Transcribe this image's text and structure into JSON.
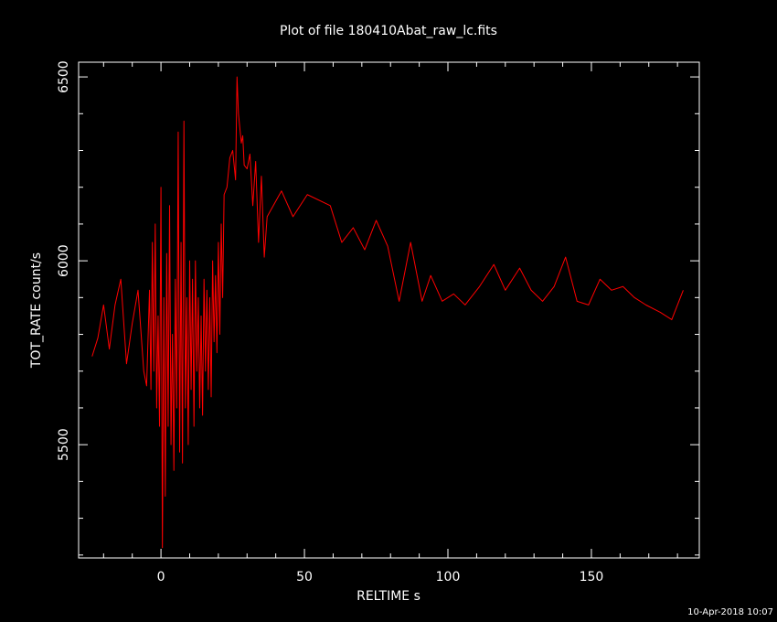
{
  "chart_data": {
    "type": "line",
    "title": "Plot of file 180410Abat_raw_lc.fits",
    "x_label": "RELTIME  s",
    "y_label": "TOT_RATE  count/s",
    "timestamp": "10-Apr-2018 10:07",
    "color": "#ff0000",
    "xlim": [
      -28.7,
      187.6
    ],
    "ylim": [
      5192,
      6540
    ],
    "xticks": [
      0,
      50,
      100,
      150
    ],
    "yticks": [
      5500,
      6000,
      6500
    ],
    "xminorticks": [
      -20,
      -10,
      10,
      20,
      30,
      40,
      60,
      70,
      80,
      90,
      110,
      120,
      130,
      140,
      160,
      170,
      180
    ],
    "yminorticks": [
      5200,
      5300,
      5400,
      5600,
      5700,
      5800,
      5900,
      6100,
      6200,
      6300,
      6400
    ],
    "x": [
      -24,
      -22,
      -20,
      -18,
      -16,
      -14,
      -12,
      -10,
      -8,
      -6,
      -5,
      -4.0,
      -3.5,
      -3.0,
      -2.5,
      -2.0,
      -1.5,
      -1.0,
      -0.5,
      0.0,
      0.5,
      1.0,
      1.5,
      2.0,
      2.5,
      3.0,
      3.5,
      4.0,
      4.5,
      5.0,
      5.5,
      6.0,
      6.5,
      7.0,
      7.5,
      8.0,
      8.5,
      9.0,
      9.5,
      10.0,
      10.5,
      11.0,
      11.5,
      12.0,
      12.5,
      13.0,
      13.5,
      14.0,
      14.5,
      15.0,
      15.5,
      16.0,
      16.5,
      17.0,
      17.5,
      18.0,
      18.5,
      19.0,
      19.5,
      20.0,
      20.5,
      21.0,
      21.5,
      22.0,
      23,
      24,
      25,
      26,
      26.5,
      27,
      28,
      28.5,
      29,
      30,
      31,
      32,
      33,
      34,
      35,
      36,
      37,
      42,
      46,
      51,
      59,
      63,
      67,
      71,
      75,
      79,
      83,
      87,
      91,
      94,
      98,
      102,
      106,
      111,
      116,
      120,
      125,
      129,
      133,
      137,
      141,
      145,
      149,
      153,
      157,
      161,
      165,
      169,
      174,
      178,
      182
    ],
    "values": [
      5740,
      5790,
      5880,
      5760,
      5880,
      5950,
      5720,
      5830,
      5920,
      5700,
      5660,
      5920,
      5650,
      6050,
      5700,
      6100,
      5600,
      5850,
      5550,
      6200,
      5220,
      5900,
      5360,
      6020,
      5550,
      6150,
      5500,
      5800,
      5430,
      5950,
      5600,
      6350,
      5480,
      6050,
      5450,
      6380,
      5600,
      5900,
      5500,
      6000,
      5650,
      5950,
      5550,
      6000,
      5700,
      5900,
      5600,
      5850,
      5580,
      5950,
      5700,
      5920,
      5650,
      5900,
      5630,
      6000,
      5780,
      5960,
      5750,
      6050,
      5800,
      6100,
      5900,
      6180,
      6200,
      6280,
      6300,
      6220,
      6500,
      6400,
      6320,
      6340,
      6260,
      6250,
      6290,
      6150,
      6270,
      6050,
      6230,
      6010,
      6120,
      6190,
      6120,
      6180,
      6150,
      6050,
      6090,
      6030,
      6110,
      6040,
      5890,
      6050,
      5890,
      5960,
      5890,
      5910,
      5880,
      5930,
      5990,
      5920,
      5980,
      5920,
      5890,
      5930,
      6010,
      5890,
      5880,
      5950,
      5920,
      5930,
      5900,
      5880,
      5860,
      5840,
      5920
    ]
  }
}
